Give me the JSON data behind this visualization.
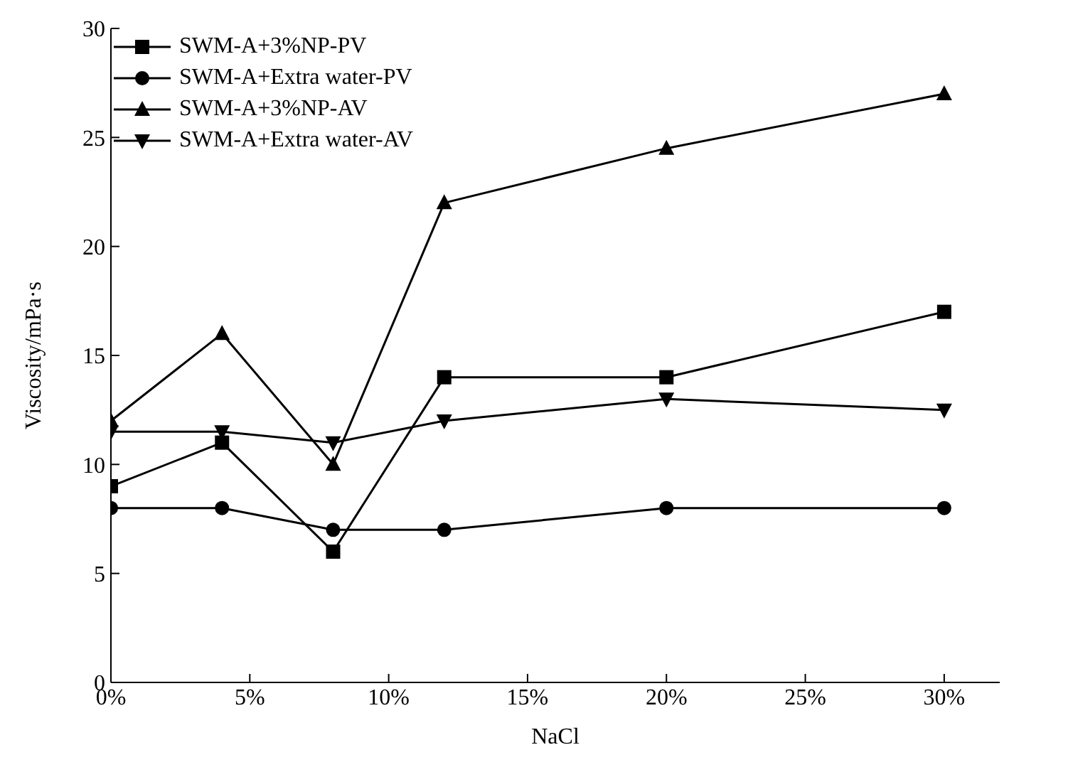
{
  "chart_data": {
    "type": "line",
    "xlabel": "NaCl",
    "ylabel": "Viscosity/mPa·s",
    "x": [
      0,
      4,
      8,
      12,
      20,
      30
    ],
    "xlim": [
      0,
      32
    ],
    "xticks": [
      {
        "value": 0,
        "label": "0%"
      },
      {
        "value": 5,
        "label": "5%"
      },
      {
        "value": 10,
        "label": "10%"
      },
      {
        "value": 15,
        "label": "15%"
      },
      {
        "value": 20,
        "label": "20%"
      },
      {
        "value": 25,
        "label": "25%"
      },
      {
        "value": 30,
        "label": "30%"
      }
    ],
    "ylim": [
      0,
      30
    ],
    "yticks": [
      0,
      5,
      10,
      15,
      20,
      25,
      30
    ],
    "grid": false,
    "legend": "top left",
    "line_style": "solid",
    "series": [
      {
        "name": "SWM-A+3%NP-PV",
        "color": "#000000",
        "marker": "square",
        "values": [
          9,
          11,
          6,
          14,
          14,
          17
        ]
      },
      {
        "name": "SWM-A+Extra water-PV",
        "color": "#000000",
        "marker": "circle",
        "values": [
          8,
          8,
          7,
          7,
          8,
          8
        ]
      },
      {
        "name": "SWM-A+3%NP-AV",
        "color": "#000000",
        "marker": "triangle",
        "values": [
          12,
          16,
          10,
          22,
          24.5,
          27
        ]
      },
      {
        "name": "SWM-A+Extra water-AV",
        "color": "#000000",
        "marker": "triangle-down",
        "values": [
          11.5,
          11.5,
          11,
          12,
          13,
          12.5
        ]
      }
    ]
  }
}
